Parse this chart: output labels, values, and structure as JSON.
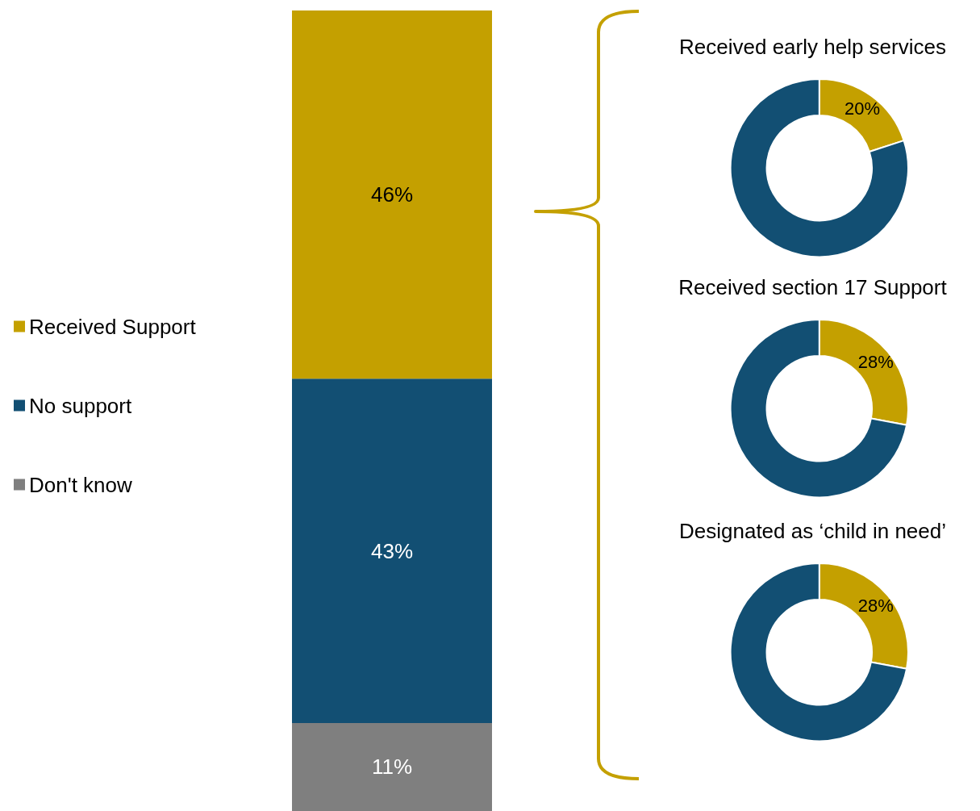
{
  "chart_data": [
    {
      "type": "bar",
      "stacked": true,
      "categories": [
        null
      ],
      "legend": "left",
      "series": [
        {
          "name": "Don't know",
          "color": "#7f7f7f",
          "values": [
            11
          ],
          "value_labels": [
            "11%"
          ]
        },
        {
          "name": "No support",
          "color": "#124f73",
          "values": [
            43
          ],
          "value_labels": [
            "43%"
          ]
        },
        {
          "name": "Received Support",
          "color": "#c4a000",
          "values": [
            46
          ],
          "value_labels": [
            "46%"
          ]
        }
      ]
    },
    {
      "type": "donut",
      "title": "Received early help services",
      "categories": [
        null,
        null
      ],
      "values": [
        20,
        80
      ],
      "colors": [
        "#c4a000",
        "#124f73"
      ],
      "value_labels": [
        "20%",
        null
      ]
    },
    {
      "type": "donut",
      "title": "Received section 17 Support",
      "categories": [
        null,
        null
      ],
      "values": [
        28,
        72
      ],
      "colors": [
        "#c4a000",
        "#124f73"
      ],
      "value_labels": [
        "28%",
        null
      ]
    },
    {
      "type": "donut",
      "title": "Designated as ‘child in need’",
      "categories": [
        null,
        null
      ],
      "values": [
        28,
        72
      ],
      "colors": [
        "#c4a000",
        "#124f73"
      ],
      "value_labels": [
        "28%",
        null
      ]
    }
  ]
}
